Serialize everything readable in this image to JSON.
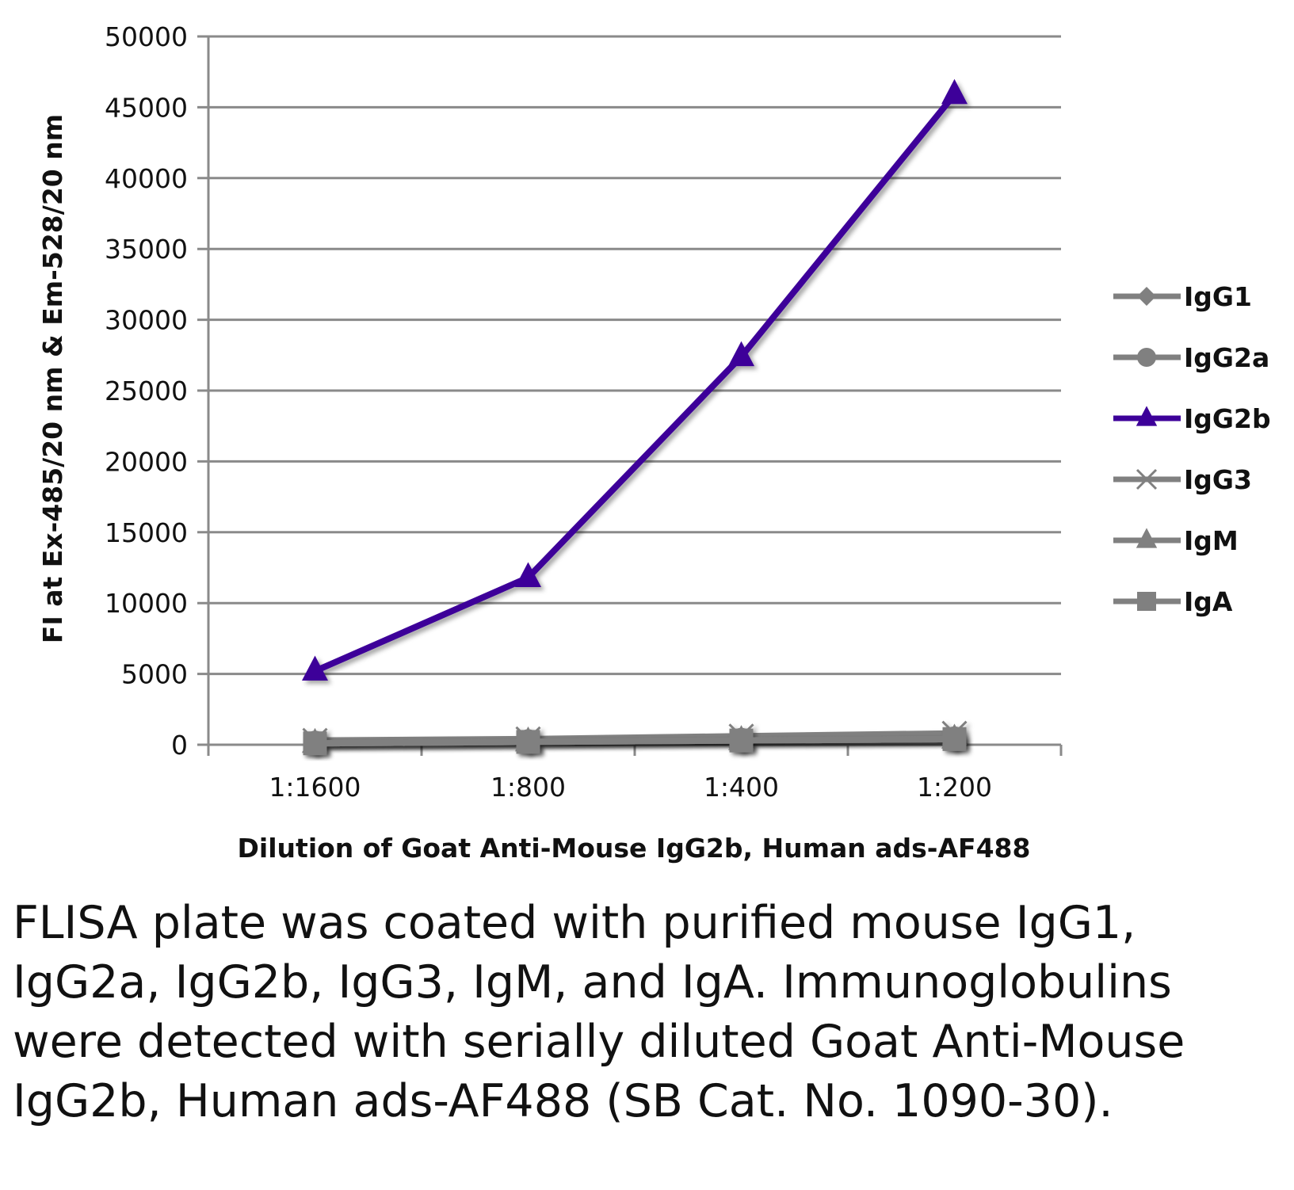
{
  "chart_data": {
    "type": "line",
    "title": "",
    "xlabel": "Dilution of Goat Anti-Mouse IgG2b, Human ads-AF488",
    "ylabel": "FI at Ex-485/20 nm & Em-528/20 nm",
    "categories": [
      "1:1600",
      "1:800",
      "1:400",
      "1:200"
    ],
    "ylim": [
      0,
      50000
    ],
    "yticks": [
      0,
      5000,
      10000,
      15000,
      20000,
      25000,
      30000,
      35000,
      40000,
      45000,
      50000
    ],
    "grid": true,
    "legend_position": "right",
    "series": [
      {
        "name": "IgG1",
        "marker": "diamond",
        "color": "#808080",
        "values": [
          150,
          250,
          350,
          450
        ]
      },
      {
        "name": "IgG2a",
        "marker": "circle",
        "color": "#808080",
        "values": [
          150,
          250,
          350,
          450
        ]
      },
      {
        "name": "IgG2b",
        "marker": "triangle",
        "color": "#3d0099",
        "values": [
          5200,
          11800,
          27400,
          45900
        ]
      },
      {
        "name": "IgG3",
        "marker": "x",
        "color": "#808080",
        "values": [
          300,
          400,
          600,
          800
        ]
      },
      {
        "name": "IgM",
        "marker": "triangle",
        "color": "#808080",
        "values": [
          100,
          200,
          300,
          400
        ]
      },
      {
        "name": "IgA",
        "marker": "square",
        "color": "#808080",
        "values": [
          100,
          200,
          300,
          400
        ]
      }
    ]
  },
  "caption": "FLISA plate was coated with purified mouse IgG1, IgG2a, IgG2b, IgG3, IgM, and IgA. Immunoglobulins were detected with serially diluted Goat Anti-Mouse IgG2b, Human ads-AF488 (SB Cat. No. 1090-30)."
}
